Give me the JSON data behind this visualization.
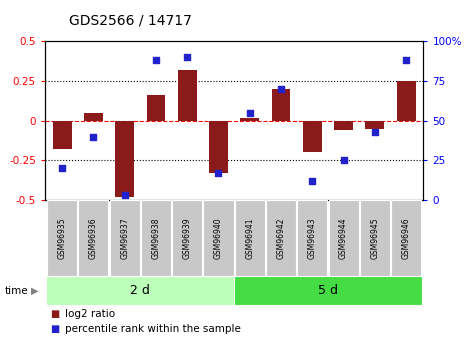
{
  "title": "GDS2566 / 14717",
  "samples": [
    "GSM96935",
    "GSM96936",
    "GSM96937",
    "GSM96938",
    "GSM96939",
    "GSM96940",
    "GSM96941",
    "GSM96942",
    "GSM96943",
    "GSM96944",
    "GSM96945",
    "GSM96946"
  ],
  "log2_ratio": [
    -0.18,
    0.05,
    -0.48,
    0.16,
    0.32,
    -0.33,
    0.02,
    0.2,
    -0.2,
    -0.06,
    -0.05,
    0.25
  ],
  "percentile_rank": [
    20,
    40,
    3,
    88,
    90,
    17,
    55,
    70,
    12,
    25,
    43,
    88
  ],
  "group1_label": "2 d",
  "group2_label": "5 d",
  "group1_count": 6,
  "group2_count": 6,
  "bar_color": "#8B1A1A",
  "dot_color": "#2222CC",
  "group1_bg": "#BBFFBB",
  "group2_bg": "#44DD44",
  "label_bg": "#C8C8C8",
  "ylim_left": [
    -0.5,
    0.5
  ],
  "ylim_right": [
    0,
    100
  ],
  "yticks_left": [
    -0.5,
    -0.25,
    0,
    0.25,
    0.5
  ],
  "yticks_right": [
    0,
    25,
    50,
    75,
    100
  ],
  "dotted_hlines": [
    0.25,
    -0.25
  ],
  "red_dashed_hline": 0.0,
  "legend_red": "log2 ratio",
  "legend_blue": "percentile rank within the sample",
  "title_fontsize": 10,
  "tick_fontsize": 7.5,
  "sample_fontsize": 5.5,
  "group_fontsize": 9,
  "legend_fontsize": 7.5
}
